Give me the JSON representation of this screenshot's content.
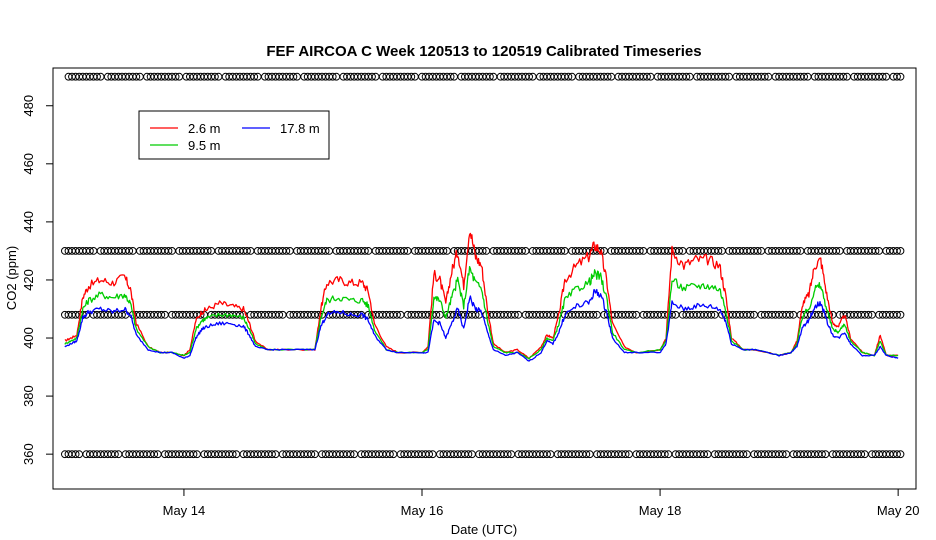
{
  "chart_data": {
    "type": "line",
    "title": "FEF AIRCOA C  Week 120513 to 120519  Calibrated Timeseries",
    "xlabel": "Date (UTC)",
    "ylabel": "CO2 (ppm)",
    "xlim": [
      12.9,
      20.15
    ],
    "ylim": [
      348,
      493
    ],
    "x_ticks": [
      {
        "value": 14,
        "label": "May 14"
      },
      {
        "value": 16,
        "label": "May 16"
      },
      {
        "value": 18,
        "label": "May 18"
      },
      {
        "value": 20,
        "label": "May 20"
      }
    ],
    "y_ticks": [
      {
        "value": 360,
        "label": "360"
      },
      {
        "value": 380,
        "label": "380"
      },
      {
        "value": 400,
        "label": "400"
      },
      {
        "value": 420,
        "label": "420"
      },
      {
        "value": 440,
        "label": "440"
      },
      {
        "value": 460,
        "label": "460"
      },
      {
        "value": 480,
        "label": "480"
      }
    ],
    "legend": {
      "position": "top-left",
      "entries": [
        {
          "name": "2.6 m",
          "color": "#ff0000"
        },
        {
          "name": "9.5 m",
          "color": "#00cc00"
        },
        {
          "name": "17.8 m",
          "color": "#0000ff"
        }
      ]
    },
    "series": [
      {
        "name": "2.6 m",
        "color": "#ff0000",
        "x": [
          13.0,
          13.05,
          13.1,
          13.15,
          13.2,
          13.3,
          13.4,
          13.5,
          13.55,
          13.6,
          13.7,
          13.8,
          13.9,
          14.0,
          14.05,
          14.1,
          14.15,
          14.2,
          14.3,
          14.4,
          14.5,
          14.55,
          14.6,
          14.7,
          14.8,
          15.0,
          15.1,
          15.15,
          15.2,
          15.3,
          15.4,
          15.5,
          15.55,
          15.6,
          15.7,
          15.8,
          16.0,
          16.05,
          16.1,
          16.15,
          16.2,
          16.25,
          16.3,
          16.35,
          16.4,
          16.45,
          16.5,
          16.55,
          16.6,
          16.7,
          16.8,
          16.9,
          17.0,
          17.05,
          17.1,
          17.15,
          17.2,
          17.3,
          17.4,
          17.45,
          17.5,
          17.55,
          17.6,
          17.7,
          17.8,
          18.0,
          18.05,
          18.1,
          18.2,
          18.3,
          18.4,
          18.5,
          18.55,
          18.6,
          18.7,
          18.8,
          19.0,
          19.1,
          19.15,
          19.2,
          19.25,
          19.3,
          19.35,
          19.4,
          19.45,
          19.5,
          19.55,
          19.6,
          19.7,
          19.8,
          19.85,
          19.9,
          20.0
        ],
        "values": [
          399,
          400,
          401,
          414,
          418,
          420,
          419,
          421,
          417,
          405,
          397,
          395,
          395,
          394,
          396,
          406,
          409,
          410,
          412,
          411,
          410,
          405,
          399,
          396,
          396,
          396,
          396,
          410,
          419,
          420,
          419,
          419,
          416,
          405,
          397,
          395,
          395,
          397,
          422,
          420,
          412,
          423,
          430,
          418,
          438,
          428,
          425,
          410,
          398,
          395,
          396,
          393,
          397,
          401,
          400,
          408,
          420,
          425,
          428,
          432,
          430,
          420,
          405,
          397,
          395,
          396,
          400,
          430,
          425,
          427,
          427,
          425,
          415,
          400,
          396,
          396,
          394,
          395,
          399,
          412,
          415,
          425,
          427,
          415,
          405,
          404,
          408,
          400,
          395,
          394,
          401,
          394,
          394
        ]
      },
      {
        "name": "9.5 m",
        "color": "#00cc00",
        "x": [
          13.0,
          13.05,
          13.1,
          13.15,
          13.2,
          13.3,
          13.4,
          13.5,
          13.55,
          13.6,
          13.7,
          13.8,
          13.9,
          14.0,
          14.05,
          14.1,
          14.15,
          14.2,
          14.3,
          14.4,
          14.5,
          14.55,
          14.6,
          14.7,
          14.8,
          15.0,
          15.1,
          15.15,
          15.2,
          15.3,
          15.4,
          15.5,
          15.55,
          15.6,
          15.7,
          15.8,
          16.0,
          16.05,
          16.1,
          16.15,
          16.2,
          16.25,
          16.3,
          16.35,
          16.4,
          16.45,
          16.5,
          16.55,
          16.6,
          16.7,
          16.8,
          16.9,
          17.0,
          17.05,
          17.1,
          17.15,
          17.2,
          17.3,
          17.4,
          17.45,
          17.5,
          17.55,
          17.6,
          17.7,
          17.8,
          18.0,
          18.05,
          18.1,
          18.2,
          18.3,
          18.4,
          18.5,
          18.55,
          18.6,
          18.7,
          18.8,
          19.0,
          19.1,
          19.15,
          19.2,
          19.25,
          19.3,
          19.35,
          19.4,
          19.45,
          19.5,
          19.55,
          19.6,
          19.7,
          19.8,
          19.85,
          19.9,
          20.0
        ],
        "values": [
          398,
          399,
          400,
          410,
          413,
          415,
          414,
          415,
          412,
          403,
          397,
          395,
          395,
          394,
          395,
          403,
          406,
          407,
          408,
          408,
          407,
          403,
          398,
          396,
          396,
          396,
          396,
          407,
          413,
          414,
          413,
          413,
          411,
          403,
          396,
          395,
          395,
          396,
          414,
          413,
          407,
          414,
          420,
          411,
          424,
          419,
          417,
          406,
          397,
          395,
          395,
          393,
          396,
          400,
          399,
          405,
          413,
          417,
          419,
          422,
          421,
          414,
          402,
          396,
          395,
          396,
          399,
          420,
          417,
          418,
          418,
          417,
          410,
          399,
          396,
          396,
          394,
          395,
          398,
          408,
          410,
          417,
          418,
          410,
          403,
          402,
          405,
          399,
          395,
          394,
          399,
          394,
          394
        ]
      },
      {
        "name": "17.8 m",
        "color": "#0000ff",
        "x": [
          13.0,
          13.05,
          13.1,
          13.15,
          13.2,
          13.3,
          13.4,
          13.5,
          13.55,
          13.6,
          13.7,
          13.8,
          13.9,
          14.0,
          14.05,
          14.1,
          14.15,
          14.2,
          14.3,
          14.4,
          14.5,
          14.55,
          14.6,
          14.7,
          14.8,
          15.0,
          15.1,
          15.15,
          15.2,
          15.3,
          15.4,
          15.5,
          15.55,
          15.6,
          15.7,
          15.8,
          16.0,
          16.05,
          16.1,
          16.15,
          16.2,
          16.25,
          16.3,
          16.35,
          16.4,
          16.45,
          16.5,
          16.55,
          16.6,
          16.7,
          16.8,
          16.9,
          17.0,
          17.05,
          17.1,
          17.15,
          17.2,
          17.3,
          17.4,
          17.45,
          17.5,
          17.55,
          17.6,
          17.7,
          17.8,
          18.0,
          18.05,
          18.1,
          18.2,
          18.3,
          18.4,
          18.5,
          18.55,
          18.6,
          18.7,
          18.8,
          19.0,
          19.1,
          19.15,
          19.2,
          19.25,
          19.3,
          19.35,
          19.4,
          19.45,
          19.5,
          19.55,
          19.6,
          19.7,
          19.8,
          19.85,
          19.9,
          20.0
        ],
        "values": [
          397,
          398,
          399,
          407,
          409,
          410,
          409,
          410,
          408,
          401,
          396,
          395,
          395,
          393,
          394,
          400,
          403,
          404,
          405,
          405,
          404,
          401,
          397,
          396,
          396,
          396,
          396,
          404,
          408,
          409,
          408,
          408,
          406,
          401,
          396,
          395,
          395,
          395,
          406,
          405,
          400,
          405,
          410,
          403,
          414,
          410,
          409,
          402,
          396,
          394,
          395,
          392,
          395,
          399,
          398,
          402,
          408,
          411,
          412,
          416,
          415,
          409,
          400,
          395,
          395,
          395,
          398,
          412,
          410,
          411,
          411,
          410,
          406,
          398,
          396,
          396,
          394,
          395,
          397,
          404,
          406,
          411,
          412,
          406,
          401,
          400,
          402,
          398,
          394,
          394,
          397,
          394,
          393
        ]
      }
    ],
    "reference_points": {
      "symbol": "o",
      "levels": [
        490,
        430,
        408,
        360
      ]
    }
  }
}
